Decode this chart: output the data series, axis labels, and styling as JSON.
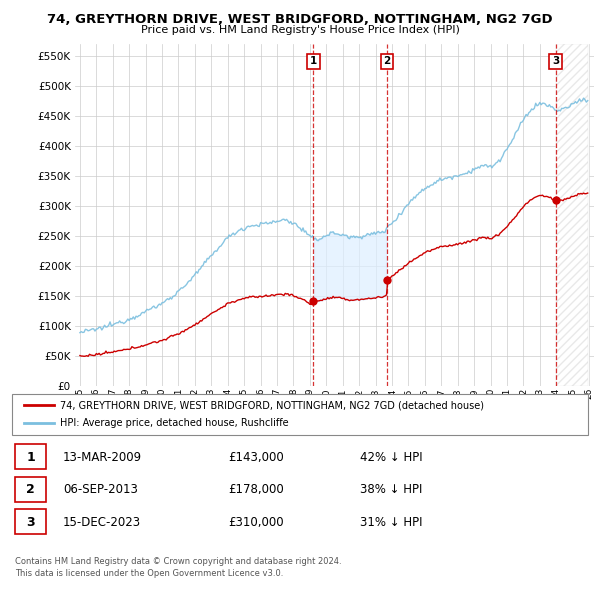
{
  "title": "74, GREYTHORN DRIVE, WEST BRIDGFORD, NOTTINGHAM, NG2 7GD",
  "subtitle": "Price paid vs. HM Land Registry's House Price Index (HPI)",
  "legend_line1": "74, GREYTHORN DRIVE, WEST BRIDGFORD, NOTTINGHAM, NG2 7GD (detached house)",
  "legend_line2": "HPI: Average price, detached house, Rushcliffe",
  "footer1": "Contains HM Land Registry data © Crown copyright and database right 2024.",
  "footer2": "This data is licensed under the Open Government Licence v3.0.",
  "sales": [
    {
      "num": 1,
      "date": "13-MAR-2009",
      "price": 143000,
      "pct": "42% ↓ HPI",
      "year": 2009.21
    },
    {
      "num": 2,
      "date": "06-SEP-2013",
      "price": 178000,
      "pct": "38% ↓ HPI",
      "year": 2013.71
    },
    {
      "num": 3,
      "date": "15-DEC-2023",
      "price": 310000,
      "pct": "31% ↓ HPI",
      "year": 2023.96
    }
  ],
  "hpi_color": "#7bbfdf",
  "sale_color": "#cc0000",
  "vline_color": "#cc0000",
  "shade_color": "#ddeeff",
  "ylim": [
    0,
    570000
  ],
  "yticks": [
    0,
    50000,
    100000,
    150000,
    200000,
    250000,
    300000,
    350000,
    400000,
    450000,
    500000,
    550000
  ],
  "xlim_start": 1994.7,
  "xlim_end": 2026.3
}
